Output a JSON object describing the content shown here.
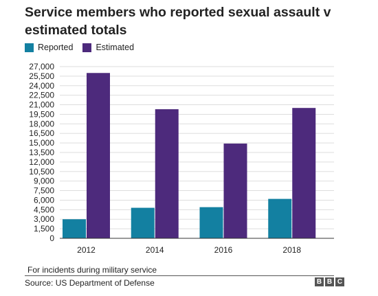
{
  "chart_data": {
    "type": "bar",
    "title": "Service members who reported sexual assault v estimated totals",
    "categories": [
      "2012",
      "2014",
      "2016",
      "2018"
    ],
    "series": [
      {
        "name": "Reported",
        "color": "#1380A1",
        "values": [
          3000,
          4800,
          4900,
          6200
        ]
      },
      {
        "name": "Estimated",
        "color": "#4D2A7C",
        "values": [
          26000,
          20300,
          14900,
          20500
        ]
      }
    ],
    "yticks": [
      0,
      1500,
      3000,
      4500,
      6000,
      7500,
      9000,
      10500,
      12000,
      13500,
      15000,
      16500,
      18000,
      19500,
      21000,
      22500,
      24000,
      25500,
      27000
    ],
    "ytick_labels": [
      "0",
      "1,500",
      "3,000",
      "4,500",
      "6,000",
      "7,500",
      "9,000",
      "10,500",
      "12,000",
      "13,500",
      "15,000",
      "16,500",
      "18,000",
      "19,500",
      "21,000",
      "22,500",
      "24,000",
      "25,500",
      "27,000"
    ],
    "ylim": [
      0,
      27000
    ],
    "grid": true,
    "legend_position": "top-left"
  },
  "footnote": "For incidents during military service",
  "source": "Source: US Department of Defense",
  "logo": {
    "letters": [
      "B",
      "B",
      "C"
    ]
  },
  "colors": {
    "reported": "#1380A1",
    "estimated": "#4D2A7C",
    "grid": "#dddddd",
    "axis": "#333333"
  }
}
